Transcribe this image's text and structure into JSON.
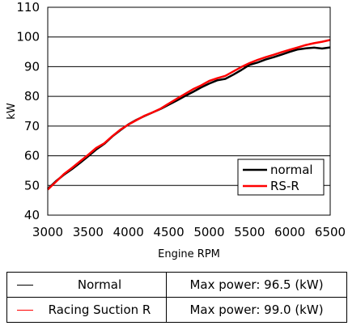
{
  "chart_data": {
    "type": "line",
    "title": "",
    "xlabel": "Engine RPM",
    "ylabel": "kW",
    "xlim": [
      3000,
      6500
    ],
    "ylim": [
      40,
      110
    ],
    "xticks": [
      3000,
      3500,
      4000,
      4500,
      5000,
      5500,
      6000,
      6500
    ],
    "yticks": [
      40,
      50,
      60,
      70,
      80,
      90,
      100,
      110
    ],
    "grid": "horizontal",
    "legend_position": "bottom-right",
    "series": [
      {
        "name": "normal",
        "color": "#000000",
        "x": [
          3000,
          3100,
          3200,
          3300,
          3400,
          3500,
          3600,
          3700,
          3800,
          3900,
          4000,
          4100,
          4200,
          4300,
          4400,
          4500,
          4600,
          4700,
          4800,
          4900,
          5000,
          5100,
          5200,
          5300,
          5400,
          5500,
          5600,
          5700,
          5800,
          5900,
          6000,
          6100,
          6200,
          6300,
          6400,
          6500
        ],
        "y": [
          48.8,
          51.4,
          53.6,
          55.5,
          57.6,
          59.8,
          62.1,
          64.0,
          66.5,
          68.6,
          70.6,
          72.1,
          73.4,
          74.6,
          75.8,
          77.2,
          78.6,
          80.1,
          81.5,
          83.0,
          84.3,
          85.4,
          85.9,
          87.3,
          88.9,
          90.6,
          91.4,
          92.4,
          93.2,
          94.1,
          95.0,
          95.8,
          96.2,
          96.4,
          96.1,
          96.5
        ]
      },
      {
        "name": "RS-R",
        "color": "#ff0000",
        "x": [
          3000,
          3100,
          3200,
          3300,
          3400,
          3500,
          3600,
          3700,
          3800,
          3900,
          4000,
          4100,
          4200,
          4300,
          4400,
          4500,
          4600,
          4700,
          4800,
          4900,
          5000,
          5100,
          5200,
          5300,
          5400,
          5500,
          5600,
          5700,
          5800,
          5900,
          6000,
          6100,
          6200,
          6300,
          6400,
          6500
        ],
        "y": [
          48.6,
          51.2,
          53.8,
          55.9,
          58.1,
          60.3,
          62.6,
          64.2,
          66.6,
          68.8,
          70.5,
          72.0,
          73.5,
          74.6,
          75.9,
          77.6,
          79.2,
          80.8,
          82.4,
          83.7,
          85.2,
          86.1,
          86.9,
          88.4,
          89.9,
          91.2,
          92.3,
          93.2,
          94.0,
          94.9,
          95.7,
          96.5,
          97.3,
          97.9,
          98.4,
          99.0
        ]
      }
    ]
  },
  "table": {
    "rows": [
      {
        "name": "Normal",
        "value": "Max power: 96.5 (kW)",
        "color": "#000000"
      },
      {
        "name": "Racing Suction R",
        "value": "Max power: 99.0 (kW)",
        "color": "#ff0000"
      }
    ]
  }
}
